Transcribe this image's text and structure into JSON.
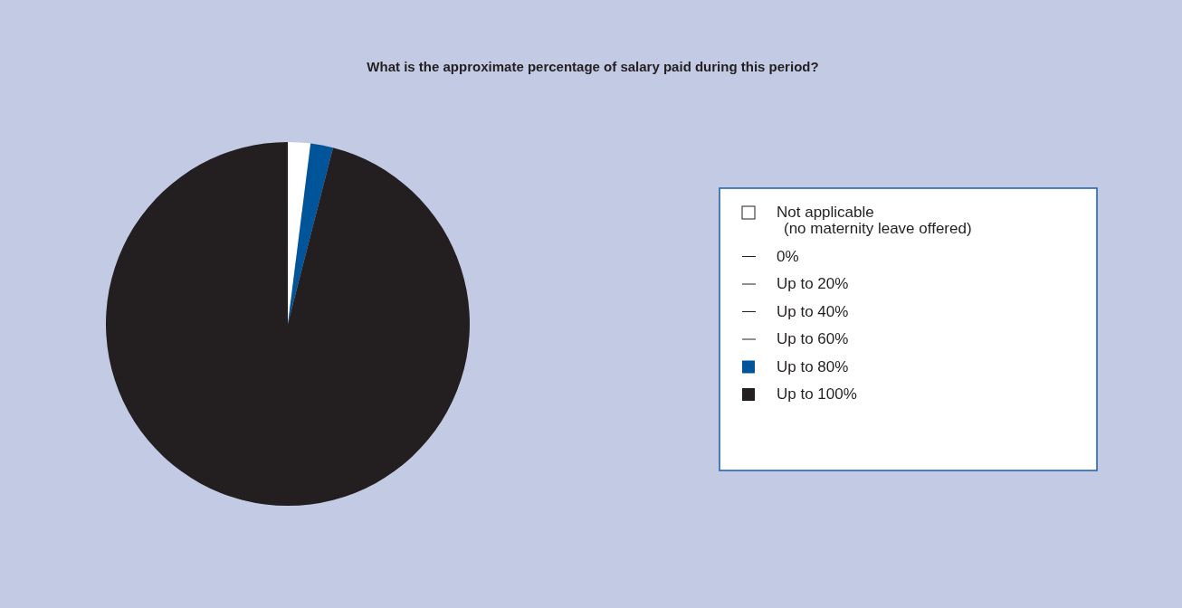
{
  "chart_data": {
    "type": "pie",
    "title": "What is the approximate percentage of salary paid during this period?",
    "categories": [
      "Not applicable\n(no maternity leave offered)",
      "0%",
      "Up to 20%",
      "Up to 40%",
      "Up to 60%",
      "Up to 80%",
      "Up to 100%"
    ],
    "values": [
      2,
      0,
      0,
      0,
      0,
      2,
      96
    ],
    "colors": [
      "#ffffff",
      "#231f20",
      "#231f20",
      "#231f20",
      "#231f20",
      "#00549a",
      "#231f20"
    ],
    "legend": "right"
  }
}
